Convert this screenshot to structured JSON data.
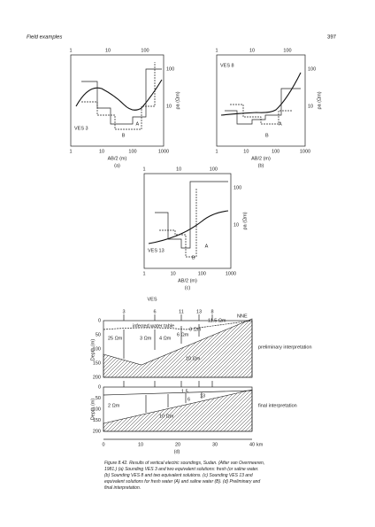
{
  "header": {
    "running_title": "Field examples",
    "page_number": "397"
  },
  "panels": [
    {
      "label": "(a)",
      "name": "VES 3",
      "top_ticks": [
        "1",
        "10",
        "100"
      ],
      "bottom_ticks": [
        "1",
        "10",
        "100",
        "1000"
      ],
      "right_ticks": [
        "100",
        "10"
      ],
      "x_axis": "AB/2 (m)",
      "y_axis": "ρa (Ωm)",
      "solutions": [
        "A",
        "B"
      ]
    },
    {
      "label": "(b)",
      "name": "VES 8",
      "top_ticks": [
        "1",
        "10",
        "100"
      ],
      "bottom_ticks": [
        "1",
        "10",
        "100",
        "1000"
      ],
      "right_ticks": [
        "100",
        "10"
      ],
      "x_axis": "AB/2 (m)",
      "y_axis": "ρa (Ωm)",
      "solutions": [
        "A",
        "B"
      ]
    },
    {
      "label": "(c)",
      "name": "VES 13",
      "top_ticks": [
        "1",
        "10",
        "100"
      ],
      "bottom_ticks": [
        "1",
        "10",
        "100",
        "1000"
      ],
      "right_ticks": [
        "100",
        "10"
      ],
      "x_axis": "AB/2 (m)",
      "y_axis": "ρa (Ωm)",
      "solutions": [
        "A",
        "B"
      ]
    }
  ],
  "section": {
    "label": "(d)",
    "ves": "VES",
    "ves_numbers": [
      "3",
      "6",
      "11",
      "13",
      "8"
    ],
    "end": "NNE",
    "depth_axis": "Depth (m)",
    "depth_ticks": [
      "0",
      "50",
      "100",
      "150",
      "200"
    ],
    "prelim_labels": [
      "25 Ωm",
      "3 Ωm",
      "4 Ωm",
      "6 Ωm",
      "3 Ωm",
      "11.5 Ωm",
      "10 Ωm",
      "inferred water table"
    ],
    "final_labels": [
      "2 Ωm",
      "10 Ωm",
      "1.5",
      "6",
      "13"
    ],
    "prelim": "preliminary interpretation",
    "final": "final interpretation",
    "distance_ticks": [
      "0",
      "10",
      "20",
      "30",
      "40"
    ],
    "distance_unit": "km"
  },
  "caption": "Figure 8.42. Results of vertical electric soundings, Sudan. (After van Overmeeren, 1981.) (a) Sounding VES 3 and two equivalent solutions: fresh (or saline water. (b) Sounding VES 8 and two equivalent solutions. (c) Sounding VES 13 and equivalent solutions for fresh water (A) and saline water (B). (d) Preliminary and final interpretation."
}
